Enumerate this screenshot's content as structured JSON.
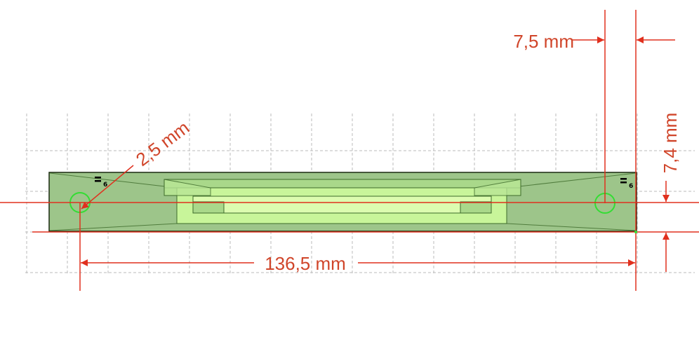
{
  "drawing": {
    "colors": {
      "dimension": "#e0301e",
      "dimension_text": "#d0452a",
      "body_fill": "#9dc58a",
      "body_stroke": "#1a2a10",
      "inner_fill": "#c8f59a",
      "inner_fill_light": "#dcfcb0",
      "frame_fill": "#a9d88a",
      "hole_marker": "#33dd33",
      "grid": "#bbbbbb"
    },
    "dimensions": {
      "hole_offset": "7,5 mm",
      "height": "7,4 mm",
      "hole_diameter": "2,5 mm",
      "hole_spacing": "136,5 mm"
    },
    "constraint_tags": {
      "left": "6",
      "right": "6"
    }
  }
}
